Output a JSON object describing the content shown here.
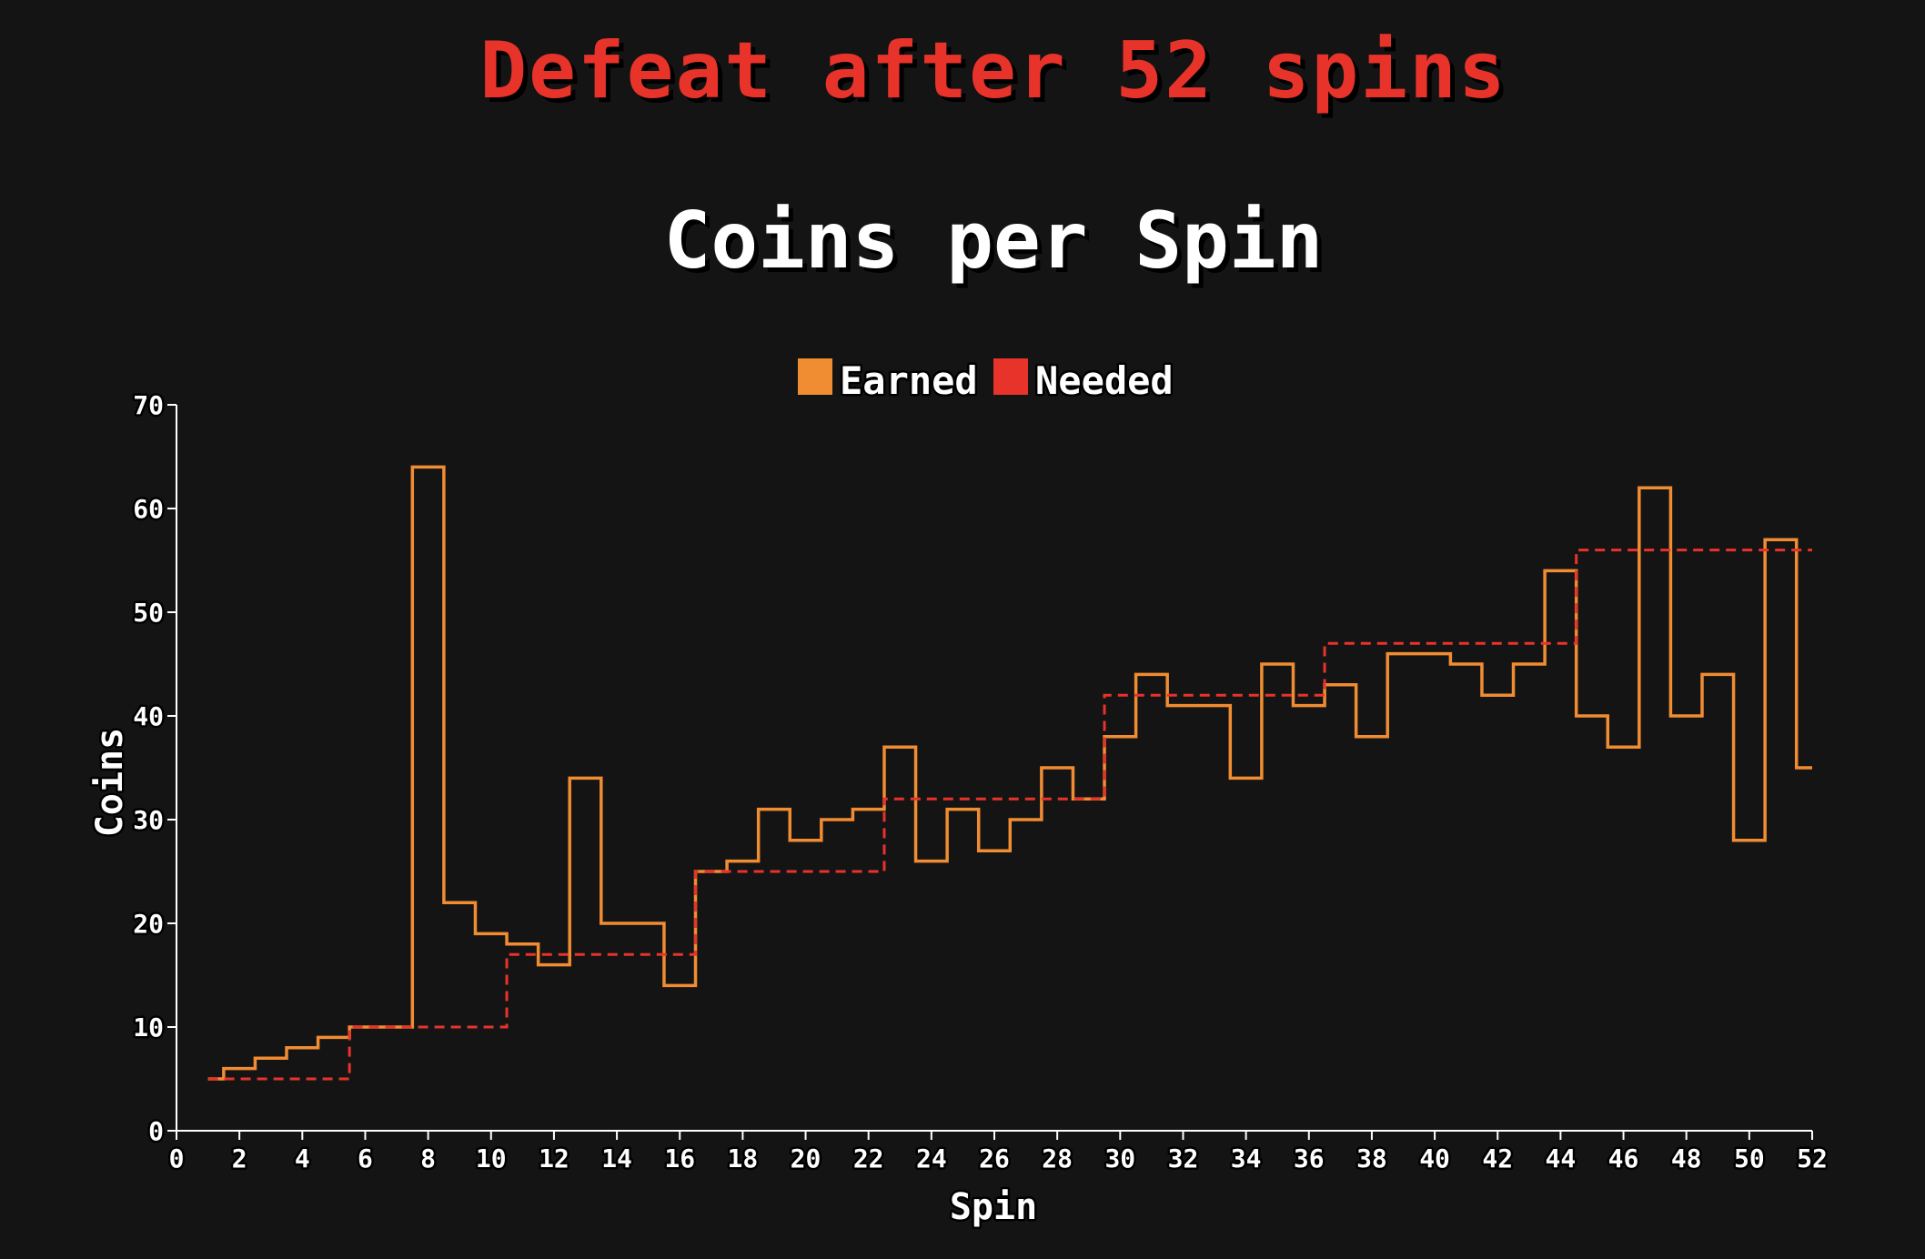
{
  "headline": "Defeat after 52 spins",
  "colors": {
    "background": "#141414",
    "headline": "#e8332a",
    "earned": "#f08c32",
    "needed": "#e8332a",
    "axis": "#ffffff"
  },
  "chart_data": {
    "type": "line",
    "step": true,
    "title": "Coins per Spin",
    "xlabel": "Spin",
    "ylabel": "Coins",
    "xlim": [
      0,
      52
    ],
    "ylim": [
      0,
      70
    ],
    "xticks": [
      0,
      2,
      4,
      6,
      8,
      10,
      12,
      14,
      16,
      18,
      20,
      22,
      24,
      26,
      28,
      30,
      32,
      34,
      36,
      38,
      40,
      42,
      44,
      46,
      48,
      50,
      52
    ],
    "yticks": [
      0,
      10,
      20,
      30,
      40,
      50,
      60,
      70
    ],
    "legend": {
      "position": "top-center",
      "entries": [
        {
          "label": "Earned",
          "color": "#f08c32"
        },
        {
          "label": "Needed",
          "color": "#e8332a"
        }
      ]
    },
    "series": [
      {
        "name": "Earned",
        "style": "solid",
        "x": [
          1,
          2,
          3,
          4,
          5,
          6,
          7,
          8,
          9,
          10,
          11,
          12,
          13,
          14,
          15,
          16,
          17,
          18,
          19,
          20,
          21,
          22,
          23,
          24,
          25,
          26,
          27,
          28,
          29,
          30,
          31,
          32,
          33,
          34,
          35,
          36,
          37,
          38,
          39,
          40,
          41,
          42,
          43,
          44,
          45,
          46,
          47,
          48,
          49,
          50,
          51,
          52
        ],
        "values": [
          5,
          6,
          7,
          8,
          9,
          10,
          10,
          64,
          22,
          19,
          18,
          16,
          34,
          20,
          20,
          14,
          25,
          26,
          31,
          28,
          30,
          31,
          37,
          26,
          31,
          27,
          30,
          35,
          32,
          38,
          44,
          41,
          41,
          34,
          45,
          41,
          43,
          38,
          46,
          46,
          45,
          42,
          45,
          54,
          40,
          37,
          62,
          40,
          44,
          28,
          57,
          35
        ]
      },
      {
        "name": "Needed",
        "style": "dashed",
        "x": [
          1,
          2,
          3,
          4,
          5,
          6,
          7,
          8,
          9,
          10,
          11,
          12,
          13,
          14,
          15,
          16,
          17,
          18,
          19,
          20,
          21,
          22,
          23,
          24,
          25,
          26,
          27,
          28,
          29,
          30,
          31,
          32,
          33,
          34,
          35,
          36,
          37,
          38,
          39,
          40,
          41,
          42,
          43,
          44,
          45,
          46,
          47,
          48,
          49,
          50,
          51,
          52
        ],
        "values": [
          5,
          5,
          5,
          5,
          5,
          10,
          10,
          10,
          10,
          10,
          17,
          17,
          17,
          17,
          17,
          17,
          25,
          25,
          25,
          25,
          25,
          25,
          32,
          32,
          32,
          32,
          32,
          32,
          32,
          42,
          42,
          42,
          42,
          42,
          42,
          42,
          47,
          47,
          47,
          47,
          47,
          47,
          47,
          47,
          56,
          56,
          56,
          56,
          56,
          56,
          56,
          56
        ]
      }
    ]
  }
}
